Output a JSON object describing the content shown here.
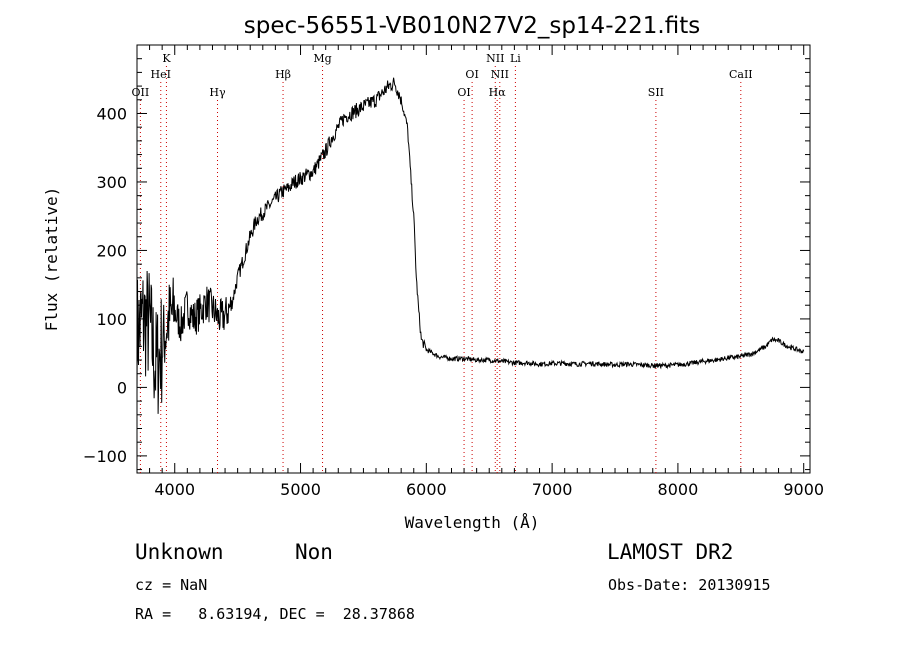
{
  "chart_data": {
    "type": "line",
    "title": "spec-56551-VB010N27V2_sp14-221.fits",
    "xlabel": "Wavelength (Å)",
    "ylabel": "Flux (relative)",
    "xlim": [
      3700,
      9050
    ],
    "ylim": [
      -125,
      500
    ],
    "x_ticks": [
      4000,
      5000,
      6000,
      7000,
      8000,
      9000
    ],
    "x_tick_labels": [
      "4000",
      "5000",
      "6000",
      "7000",
      "8000",
      "9000"
    ],
    "y_ticks": [
      -100,
      0,
      100,
      200,
      300,
      400
    ],
    "y_tick_labels": [
      "−100",
      "0",
      "100",
      "200",
      "300",
      "400"
    ],
    "grid": false,
    "line_color": "#000000",
    "marker_color": "#cc0000",
    "spectrum": {
      "x": [
        3700,
        3750,
        3800,
        3850,
        3900,
        3950,
        4000,
        4050,
        4100,
        4150,
        4200,
        4250,
        4300,
        4350,
        4400,
        4450,
        4500,
        4550,
        4600,
        4650,
        4700,
        4750,
        4800,
        4850,
        4900,
        4950,
        5000,
        5050,
        5100,
        5150,
        5200,
        5250,
        5300,
        5350,
        5400,
        5450,
        5500,
        5550,
        5600,
        5650,
        5700,
        5750,
        5800,
        5850,
        5880,
        5900,
        5920,
        5940,
        5960,
        6000,
        6050,
        6100,
        6200,
        6300,
        6400,
        6500,
        6600,
        6700,
        6800,
        6900,
        7000,
        7100,
        7200,
        7300,
        7400,
        7500,
        7600,
        7700,
        7800,
        7900,
        8000,
        8100,
        8200,
        8300,
        8400,
        8500,
        8600,
        8700,
        8750,
        8800,
        8850,
        8900,
        8950,
        9000
      ],
      "y": [
        80,
        100,
        90,
        30,
        60,
        100,
        110,
        90,
        120,
        100,
        110,
        125,
        115,
        100,
        105,
        120,
        160,
        190,
        220,
        245,
        255,
        265,
        275,
        285,
        290,
        300,
        305,
        310,
        315,
        330,
        345,
        365,
        380,
        395,
        400,
        405,
        410,
        415,
        420,
        430,
        440,
        445,
        420,
        380,
        300,
        250,
        160,
        110,
        70,
        55,
        50,
        45,
        42,
        42,
        40,
        40,
        38,
        36,
        36,
        34,
        35,
        35,
        34,
        35,
        34,
        33,
        34,
        33,
        32,
        32,
        33,
        35,
        38,
        40,
        43,
        45,
        50,
        60,
        70,
        68,
        62,
        58,
        55,
        52
      ]
    },
    "line_markers": [
      {
        "label": "OII",
        "x": 3727,
        "row": 3
      },
      {
        "label": "K",
        "x": 3934,
        "row": 1
      },
      {
        "label": "HeI",
        "x": 3889,
        "row": 2
      },
      {
        "label": "Hγ",
        "x": 4340,
        "row": 3
      },
      {
        "label": "Hβ",
        "x": 4861,
        "row": 2
      },
      {
        "label": "Mg",
        "x": 5175,
        "row": 1
      },
      {
        "label": "OI",
        "x": 6300,
        "row": 3
      },
      {
        "label": "OI",
        "x": 6364,
        "row": 2
      },
      {
        "label": "NII",
        "x": 6548,
        "row": 1
      },
      {
        "label": "NII",
        "x": 6584,
        "row": 2
      },
      {
        "label": "Hα",
        "x": 6563,
        "row": 3
      },
      {
        "label": "Li",
        "x": 6708,
        "row": 1
      },
      {
        "label": "SII",
        "x": 7825,
        "row": 3
      },
      {
        "label": "CaII",
        "x": 8500,
        "row": 2
      }
    ]
  },
  "info": {
    "class": "Unknown",
    "subclass": "Non",
    "survey": "LAMOST DR2",
    "cz": "cz = NaN",
    "obs_date": "Obs-Date: 20130915",
    "coords": "RA =   8.63194, DEC =  28.37868"
  }
}
